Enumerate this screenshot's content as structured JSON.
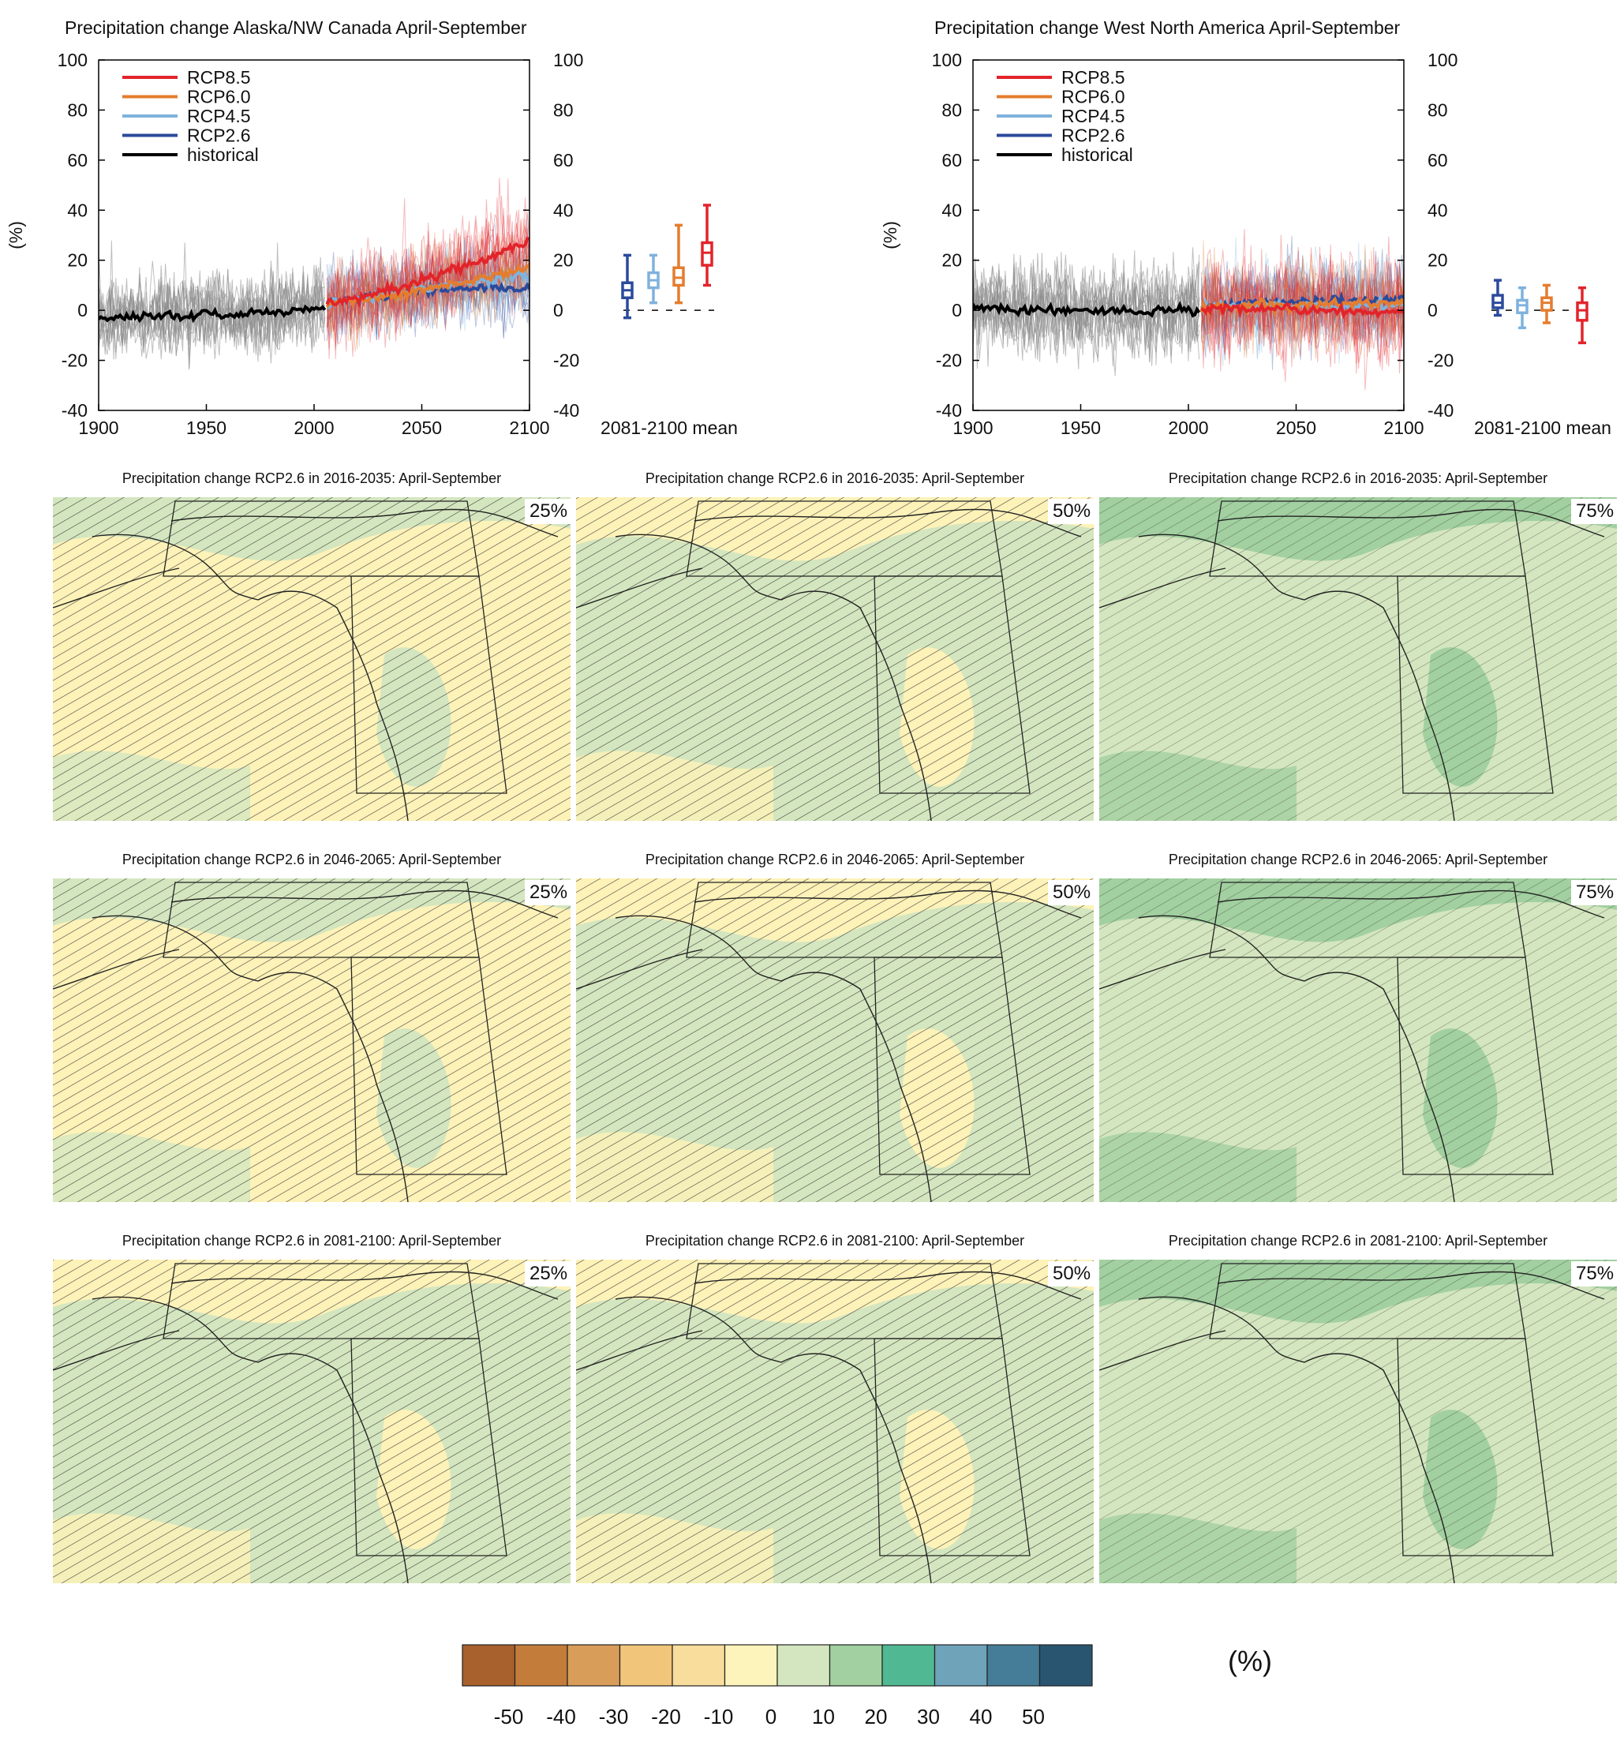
{
  "timeseries": [
    {
      "title": "Precipitation change Alaska/NW Canada April-September",
      "ylabel": "(%)",
      "mean_label": "2081-2100 mean"
    },
    {
      "title": "Precipitation change West North America April-September",
      "ylabel": "(%)",
      "mean_label": "2081-2100 mean"
    }
  ],
  "maps": {
    "titles": [
      "Precipitation change RCP2.6 in 2016-2035: April-September",
      "Precipitation change RCP2.6 in 2046-2065: April-September",
      "Precipitation change RCP2.6 in 2081-2100: April-September"
    ],
    "percentiles": [
      "25%",
      "50%",
      "75%"
    ],
    "fills": [
      [
        "#fdf2b8",
        "#d4e6bf",
        "#d4e6bf"
      ],
      [
        "#fdf2b8",
        "#d4e6bf",
        "#d4e6bf"
      ],
      [
        "#d4e6bf",
        "#d4e6bf",
        "#d4e6bf"
      ]
    ],
    "accent_fills": [
      [
        "#d4e6bf",
        "#fdf2b8",
        "#a2d0a0"
      ],
      [
        "#d4e6bf",
        "#fdf2b8",
        "#a2d0a0"
      ],
      [
        "#fdf2b8",
        "#fdf2b8",
        "#a2d0a0"
      ]
    ]
  },
  "colorbar": {
    "unit": "(%)",
    "labels": [
      "-50",
      "-40",
      "-30",
      "-20",
      "-10",
      "0",
      "10",
      "20",
      "30",
      "40",
      "50"
    ],
    "colors": [
      "#a8612c",
      "#c47c3a",
      "#d99d5a",
      "#f1c57a",
      "#f8dd9c",
      "#fdf4bb",
      "#d4e6bf",
      "#a2d0a0",
      "#50b892",
      "#6ea3ba",
      "#457d98",
      "#2a5570"
    ]
  },
  "chart_data": [
    {
      "type": "line",
      "title": "Precipitation change Alaska/NW Canada April-September",
      "ylabel": "(%)",
      "xlim": [
        1900,
        2100
      ],
      "ylim": [
        -40,
        100
      ],
      "xticks": [
        1900,
        1950,
        2000,
        2050,
        2100
      ],
      "yticks": [
        -40,
        -20,
        0,
        20,
        40,
        60,
        80,
        100
      ],
      "legend": {
        "placement": "top-left",
        "entries": [
          "RCP8.5",
          "RCP6.0",
          "RCP4.5",
          "RCP2.6",
          "historical"
        ]
      },
      "series": [
        {
          "name": "historical",
          "color": "#000000",
          "x": [
            1900,
            1910,
            1920,
            1930,
            1940,
            1950,
            1960,
            1970,
            1980,
            1990,
            2000,
            2005
          ],
          "values": [
            -4,
            -3,
            -3,
            -2,
            -2,
            -1,
            -2,
            -1,
            -1,
            0,
            1,
            1
          ]
        },
        {
          "name": "RCP2.6",
          "color": "#2b4a9b",
          "x": [
            2006,
            2020,
            2030,
            2040,
            2050,
            2060,
            2070,
            2080,
            2090,
            2100
          ],
          "values": [
            3,
            5,
            6,
            7,
            8,
            8,
            9,
            9,
            9,
            9
          ]
        },
        {
          "name": "RCP4.5",
          "color": "#7fb2dd",
          "x": [
            2006,
            2020,
            2030,
            2040,
            2050,
            2060,
            2070,
            2080,
            2090,
            2100
          ],
          "values": [
            3,
            5,
            6,
            7,
            9,
            10,
            11,
            12,
            13,
            13
          ]
        },
        {
          "name": "RCP6.0",
          "color": "#e47d2f",
          "x": [
            2006,
            2020,
            2030,
            2040,
            2050,
            2060,
            2070,
            2080,
            2090,
            2100
          ],
          "values": [
            3,
            4,
            5,
            6,
            8,
            10,
            11,
            13,
            15,
            17
          ]
        },
        {
          "name": "RCP8.5",
          "color": "#e2242a",
          "x": [
            2006,
            2020,
            2030,
            2040,
            2050,
            2060,
            2070,
            2080,
            2090,
            2100
          ],
          "values": [
            3,
            5,
            7,
            9,
            12,
            15,
            18,
            21,
            24,
            27
          ]
        }
      ],
      "boxes_2081_2100": [
        {
          "name": "RCP2.6",
          "color": "#2b4a9b",
          "min": -3,
          "q1": 5,
          "median": 8,
          "q3": 11,
          "max": 22
        },
        {
          "name": "RCP4.5",
          "color": "#7fb2dd",
          "min": 3,
          "q1": 9,
          "median": 12,
          "q3": 15,
          "max": 22
        },
        {
          "name": "RCP6.0",
          "color": "#e47d2f",
          "min": 3,
          "q1": 10,
          "median": 13,
          "q3": 17,
          "max": 34
        },
        {
          "name": "RCP8.5",
          "color": "#e2242a",
          "min": 10,
          "q1": 18,
          "median": 23,
          "q3": 27,
          "max": 42
        }
      ]
    },
    {
      "type": "line",
      "title": "Precipitation change West North America April-September",
      "ylabel": "(%)",
      "xlim": [
        1900,
        2100
      ],
      "ylim": [
        -40,
        100
      ],
      "xticks": [
        1900,
        1950,
        2000,
        2050,
        2100
      ],
      "yticks": [
        -40,
        -20,
        0,
        20,
        40,
        60,
        80,
        100
      ],
      "legend": {
        "placement": "top-left",
        "entries": [
          "RCP8.5",
          "RCP6.0",
          "RCP4.5",
          "RCP2.6",
          "historical"
        ]
      },
      "series": [
        {
          "name": "historical",
          "color": "#000000",
          "x": [
            1900,
            1910,
            1920,
            1930,
            1940,
            1950,
            1960,
            1970,
            1980,
            1990,
            2000,
            2005
          ],
          "values": [
            1,
            1,
            0,
            1,
            0,
            0,
            0,
            0,
            -1,
            0,
            0,
            0
          ]
        },
        {
          "name": "RCP2.6",
          "color": "#2b4a9b",
          "x": [
            2006,
            2020,
            2030,
            2040,
            2050,
            2060,
            2070,
            2080,
            2090,
            2100
          ],
          "values": [
            1,
            2,
            3,
            3,
            3,
            4,
            4,
            4,
            4,
            5
          ]
        },
        {
          "name": "RCP4.5",
          "color": "#7fb2dd",
          "x": [
            2006,
            2020,
            2030,
            2040,
            2050,
            2060,
            2070,
            2080,
            2090,
            2100
          ],
          "values": [
            1,
            2,
            2,
            2,
            2,
            2,
            2,
            2,
            2,
            2
          ]
        },
        {
          "name": "RCP6.0",
          "color": "#e47d2f",
          "x": [
            2006,
            2020,
            2030,
            2040,
            2050,
            2060,
            2070,
            2080,
            2090,
            2100
          ],
          "values": [
            1,
            1,
            2,
            2,
            2,
            2,
            3,
            3,
            3,
            3
          ]
        },
        {
          "name": "RCP8.5",
          "color": "#e2242a",
          "x": [
            2006,
            2020,
            2030,
            2040,
            2050,
            2060,
            2070,
            2080,
            2090,
            2100
          ],
          "values": [
            0,
            1,
            1,
            1,
            0,
            0,
            0,
            -1,
            -1,
            -1
          ]
        }
      ],
      "boxes_2081_2100": [
        {
          "name": "RCP2.6",
          "color": "#2b4a9b",
          "min": -2,
          "q1": 1,
          "median": 3,
          "q3": 6,
          "max": 12
        },
        {
          "name": "RCP4.5",
          "color": "#7fb2dd",
          "min": -7,
          "q1": -1,
          "median": 2,
          "q3": 4,
          "max": 9
        },
        {
          "name": "RCP6.0",
          "color": "#e47d2f",
          "min": -5,
          "q1": 0,
          "median": 3,
          "q3": 5,
          "max": 10
        },
        {
          "name": "RCP8.5",
          "color": "#e2242a",
          "min": -13,
          "q1": -4,
          "median": 0,
          "q3": 3,
          "max": 9
        }
      ]
    }
  ]
}
